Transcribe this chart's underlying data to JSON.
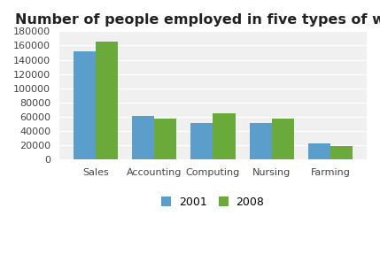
{
  "title": "Number of people employed in five types of work",
  "categories": [
    "Sales",
    "Accounting",
    "Computing",
    "Nursing",
    "Farming"
  ],
  "values_2001": [
    152000,
    61000,
    51000,
    52000,
    23000
  ],
  "values_2008": [
    165000,
    58000,
    65000,
    58000,
    19000
  ],
  "color_2001": "#5b9ecc",
  "color_2008": "#6aaa3a",
  "ylim": [
    0,
    180000
  ],
  "yticks": [
    0,
    20000,
    40000,
    60000,
    80000,
    100000,
    120000,
    140000,
    160000,
    180000
  ],
  "legend_labels": [
    "2001",
    "2008"
  ],
  "background_color": "#ffffff",
  "plot_bg_color": "#f0f0f0",
  "grid_color": "#ffffff",
  "title_fontsize": 11.5,
  "tick_fontsize": 8,
  "legend_fontsize": 9,
  "bar_width": 0.38
}
